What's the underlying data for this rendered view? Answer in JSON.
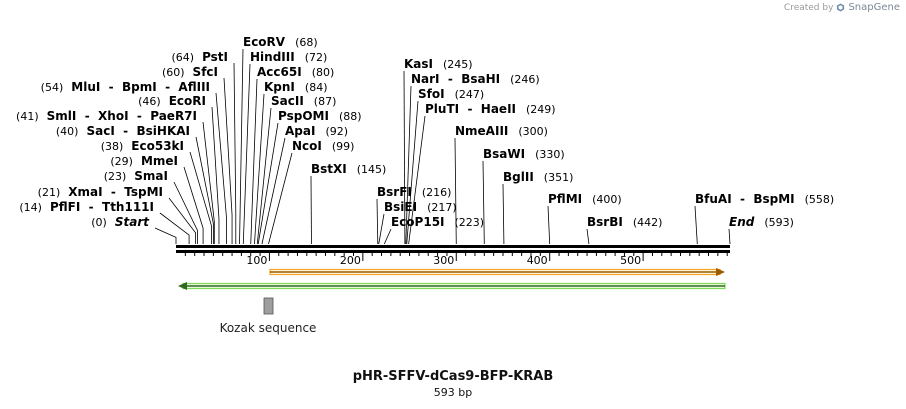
{
  "credit": {
    "prefix": "Created by",
    "brand": "SnapGene"
  },
  "map": {
    "title": "pHR-SFFV-dCas9-BFP-KRAB",
    "length_label": "593 bp",
    "length": 593,
    "ticks": [
      "100",
      "200",
      "300",
      "400",
      "500"
    ],
    "start_label": "Start",
    "end_label": "End"
  },
  "sites": [
    {
      "name": "Start",
      "pos": 0,
      "italic": true
    },
    {
      "name": "PflFI  -  Tth111I",
      "pos": 14
    },
    {
      "name": "XmaI  -  TspMI",
      "pos": 21
    },
    {
      "name": "SmaI",
      "pos": 23
    },
    {
      "name": "MmeI",
      "pos": 29
    },
    {
      "name": "Eco53kI",
      "pos": 38
    },
    {
      "name": "SacI  -  BsiHKAI",
      "pos": 40
    },
    {
      "name": "SmlI  -  XhoI  -  PaeR7I",
      "pos": 41
    },
    {
      "name": "EcoRI",
      "pos": 46
    },
    {
      "name": "MluI  -  BpmI  -  AflIII",
      "pos": 54
    },
    {
      "name": "SfcI",
      "pos": 60
    },
    {
      "name": "PstI",
      "pos": 64
    },
    {
      "name": "EcoRV",
      "pos": 68
    },
    {
      "name": "HindIII",
      "pos": 72
    },
    {
      "name": "Acc65I",
      "pos": 80
    },
    {
      "name": "KpnI",
      "pos": 84
    },
    {
      "name": "SacII",
      "pos": 87
    },
    {
      "name": "PspOMI",
      "pos": 88
    },
    {
      "name": "ApaI",
      "pos": 92
    },
    {
      "name": "NcoI",
      "pos": 99
    },
    {
      "name": "BstXI",
      "pos": 145
    },
    {
      "name": "BsrFI",
      "pos": 216
    },
    {
      "name": "BsiEI",
      "pos": 217
    },
    {
      "name": "EcoP15I",
      "pos": 223
    },
    {
      "name": "KasI",
      "pos": 245
    },
    {
      "name": "NarI  -  BsaHI",
      "pos": 246
    },
    {
      "name": "SfoI",
      "pos": 247
    },
    {
      "name": "PluTI  -  HaeII",
      "pos": 249
    },
    {
      "name": "NmeAIII",
      "pos": 300
    },
    {
      "name": "BsaWI",
      "pos": 330
    },
    {
      "name": "BglII",
      "pos": 351
    },
    {
      "name": "PflMI",
      "pos": 400
    },
    {
      "name": "BsrBI",
      "pos": 442
    },
    {
      "name": "BfuAI  -  BspMI",
      "pos": 558
    },
    {
      "name": "End",
      "pos": 593,
      "italic": true
    }
  ],
  "features": {
    "orange_arrow": {
      "direction": "forward",
      "color": "#f5a623"
    },
    "green_arrow": {
      "direction": "reverse",
      "color": "#7ed957"
    },
    "kozak": {
      "label": "Kozak sequence",
      "color": "#9e9e9e"
    }
  }
}
